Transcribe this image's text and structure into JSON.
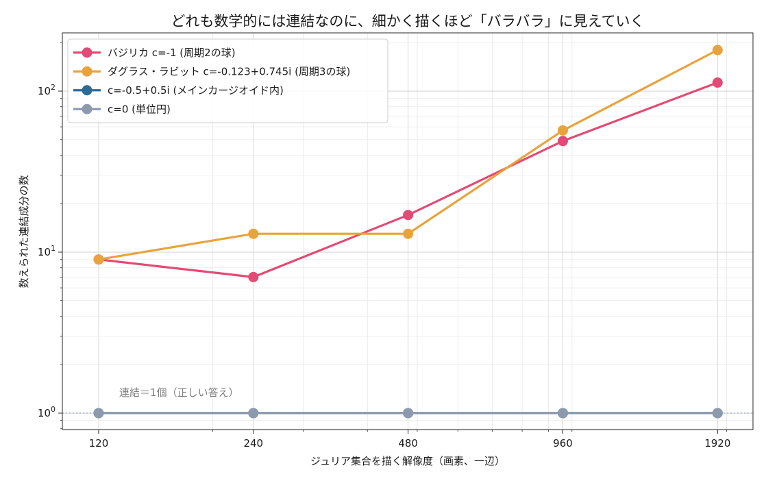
{
  "chart_data": {
    "type": "line",
    "title": "どれも数学的には連結なのに、細かく描くほど「バラバラ」に見えていく",
    "xlabel": "ジュリア集合を描く解像度（画素、一辺）",
    "ylabel": "数えられた連結成分の数",
    "x_scale": "log",
    "y_scale": "log",
    "x": [
      120,
      240,
      480,
      960,
      1920
    ],
    "x_tick_labels": [
      "120",
      "240",
      "480",
      "960",
      "1920"
    ],
    "xlim": [
      102,
      2250
    ],
    "ylim": [
      0.79,
      230
    ],
    "y_ticks": [
      {
        "value": 1,
        "base": "10",
        "exp": "0"
      },
      {
        "value": 10,
        "base": "10",
        "exp": "1"
      },
      {
        "value": 100,
        "base": "10",
        "exp": "2"
      }
    ],
    "grid": true,
    "legend_position": "top-left",
    "series": [
      {
        "name": "バジリカ c=-1 (周期2の球)",
        "color": "#e34a75",
        "values": [
          9,
          7,
          17,
          49,
          113
        ]
      },
      {
        "name": "ダグラス・ラビット c=-0.123+0.745i (周期3の球)",
        "color": "#e8a33d",
        "values": [
          9,
          13,
          13,
          57,
          180
        ]
      },
      {
        "name": "c=-0.5+0.5i (メインカージオイド内)",
        "color": "#2e6a96",
        "values": [
          1,
          1,
          1,
          1,
          1
        ]
      },
      {
        "name": "c=0 (単位円)",
        "color": "#8d9aae",
        "values": [
          1,
          1,
          1,
          1,
          1
        ]
      }
    ],
    "reference_line": {
      "value": 1,
      "color": "#aab3c0"
    },
    "annotation": {
      "text": "連結＝1個（正しい答え）",
      "x": 130,
      "y": 1.28
    }
  }
}
